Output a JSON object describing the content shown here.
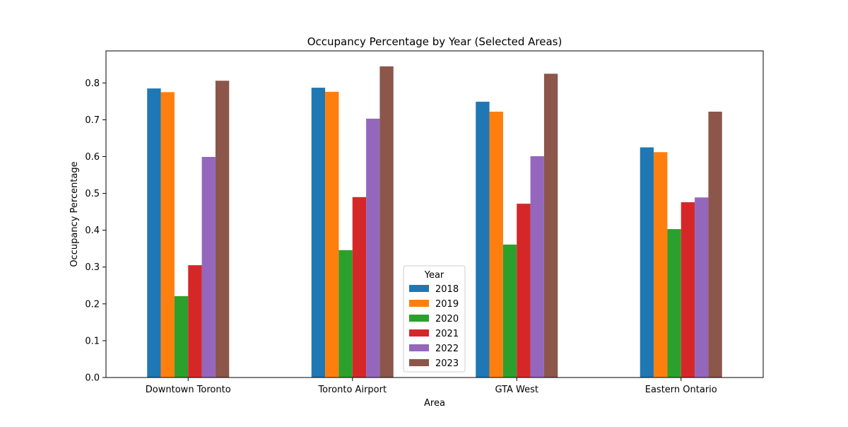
{
  "chart_data": {
    "type": "bar",
    "title": "Occupancy Percentage by Year (Selected Areas)",
    "xlabel": "Area",
    "ylabel": "Occupancy Percentage",
    "categories": [
      "Downtown Toronto",
      "Toronto Airport",
      "GTA West",
      "Eastern Ontario"
    ],
    "ylim": [
      0,
      0.887
    ],
    "yticks": [
      "0.0",
      "0.1",
      "0.2",
      "0.3",
      "0.4",
      "0.5",
      "0.6",
      "0.7",
      "0.8"
    ],
    "grid": false,
    "legend": {
      "title": "Year",
      "placement": "lower-center"
    },
    "series": [
      {
        "name": "2018",
        "color": "#1f77b4",
        "values": [
          0.785,
          0.787,
          0.749,
          0.625
        ]
      },
      {
        "name": "2019",
        "color": "#ff7f0e",
        "values": [
          0.775,
          0.776,
          0.722,
          0.612
        ]
      },
      {
        "name": "2020",
        "color": "#2ca02c",
        "values": [
          0.221,
          0.346,
          0.361,
          0.403
        ]
      },
      {
        "name": "2021",
        "color": "#d62728",
        "values": [
          0.305,
          0.49,
          0.472,
          0.476
        ]
      },
      {
        "name": "2022",
        "color": "#9467bd",
        "values": [
          0.599,
          0.703,
          0.601,
          0.489
        ]
      },
      {
        "name": "2023",
        "color": "#8c564b",
        "values": [
          0.806,
          0.845,
          0.825,
          0.722
        ]
      }
    ]
  }
}
